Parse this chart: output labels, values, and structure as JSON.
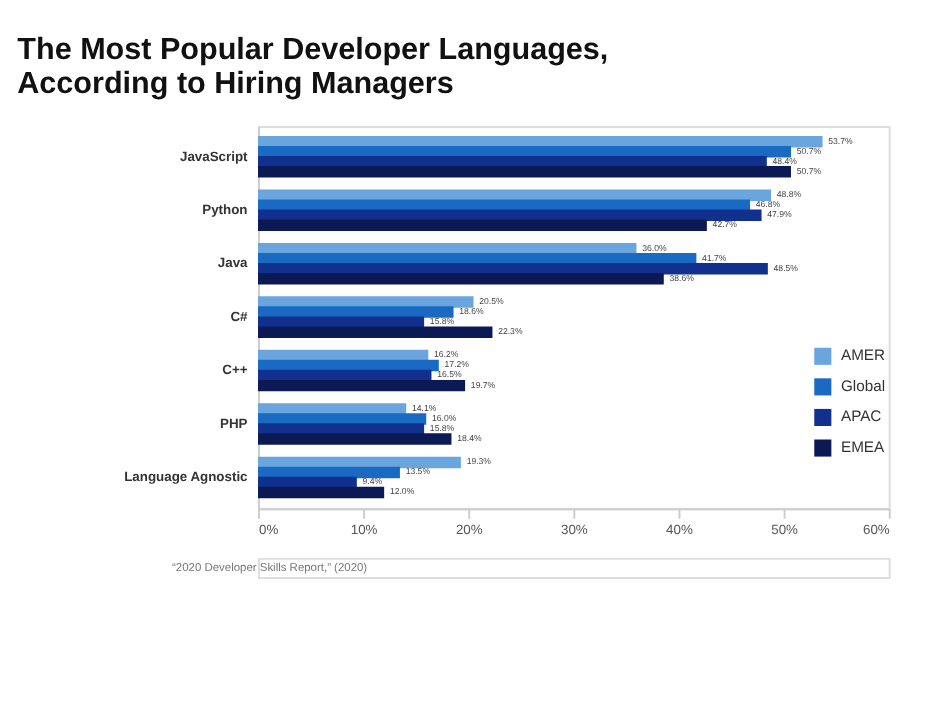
{
  "chart_data": {
    "type": "bar",
    "orientation": "horizontal",
    "title": [
      "The Most Popular Developer Languages,",
      "According to Hiring Managers"
    ],
    "categories": [
      "JavaScript",
      "Python",
      "Java",
      "C#",
      "C++",
      "PHP",
      "Language Agnostic"
    ],
    "series": [
      {
        "name": "AMER",
        "color": "#6aa6dd",
        "values": [
          53.7,
          48.8,
          36.0,
          20.5,
          16.2,
          14.1,
          19.3
        ],
        "value_labels": [
          "53.7%",
          "48.8%",
          "36.0%",
          "20.5%",
          "16.2%",
          "14.1%",
          "19.3%"
        ]
      },
      {
        "name": "Global",
        "color": "#1a6ac4",
        "values": [
          50.7,
          46.8,
          41.7,
          18.6,
          17.2,
          16.0,
          13.5
        ],
        "value_labels": [
          "50.7%",
          "46.8%",
          "41.7%",
          "18.6%",
          "17.2%",
          "16.0%",
          "13.5%"
        ]
      },
      {
        "name": "APAC",
        "color": "#12318f",
        "values": [
          48.4,
          47.9,
          48.5,
          15.8,
          16.5,
          15.8,
          9.4
        ],
        "value_labels": [
          "48.4%",
          "47.9%",
          "48.5%",
          "15.8%",
          "16.5%",
          "15.8%",
          "9.4%"
        ]
      },
      {
        "name": "EMEA",
        "color": "#0b1a55",
        "values": [
          50.7,
          42.7,
          38.6,
          22.3,
          19.7,
          18.4,
          12.0
        ],
        "value_labels": [
          "50.7%",
          "42.7%",
          "38.6%",
          "22.3%",
          "19.7%",
          "18.4%",
          "12.0%"
        ]
      }
    ],
    "xlim": [
      0,
      60
    ],
    "xticks": [
      {
        "value": 0,
        "label": "0%"
      },
      {
        "value": 10,
        "label": "10%"
      },
      {
        "value": 20,
        "label": "20%"
      },
      {
        "value": 30,
        "label": "30%"
      },
      {
        "value": 40,
        "label": "40%"
      },
      {
        "value": 50,
        "label": "50%"
      },
      {
        "value": 60,
        "label": "60%"
      }
    ],
    "grid": false,
    "legend": "bottom right",
    "annotations": [
      "“2020 Developer Skills Report,” (2020)"
    ]
  }
}
